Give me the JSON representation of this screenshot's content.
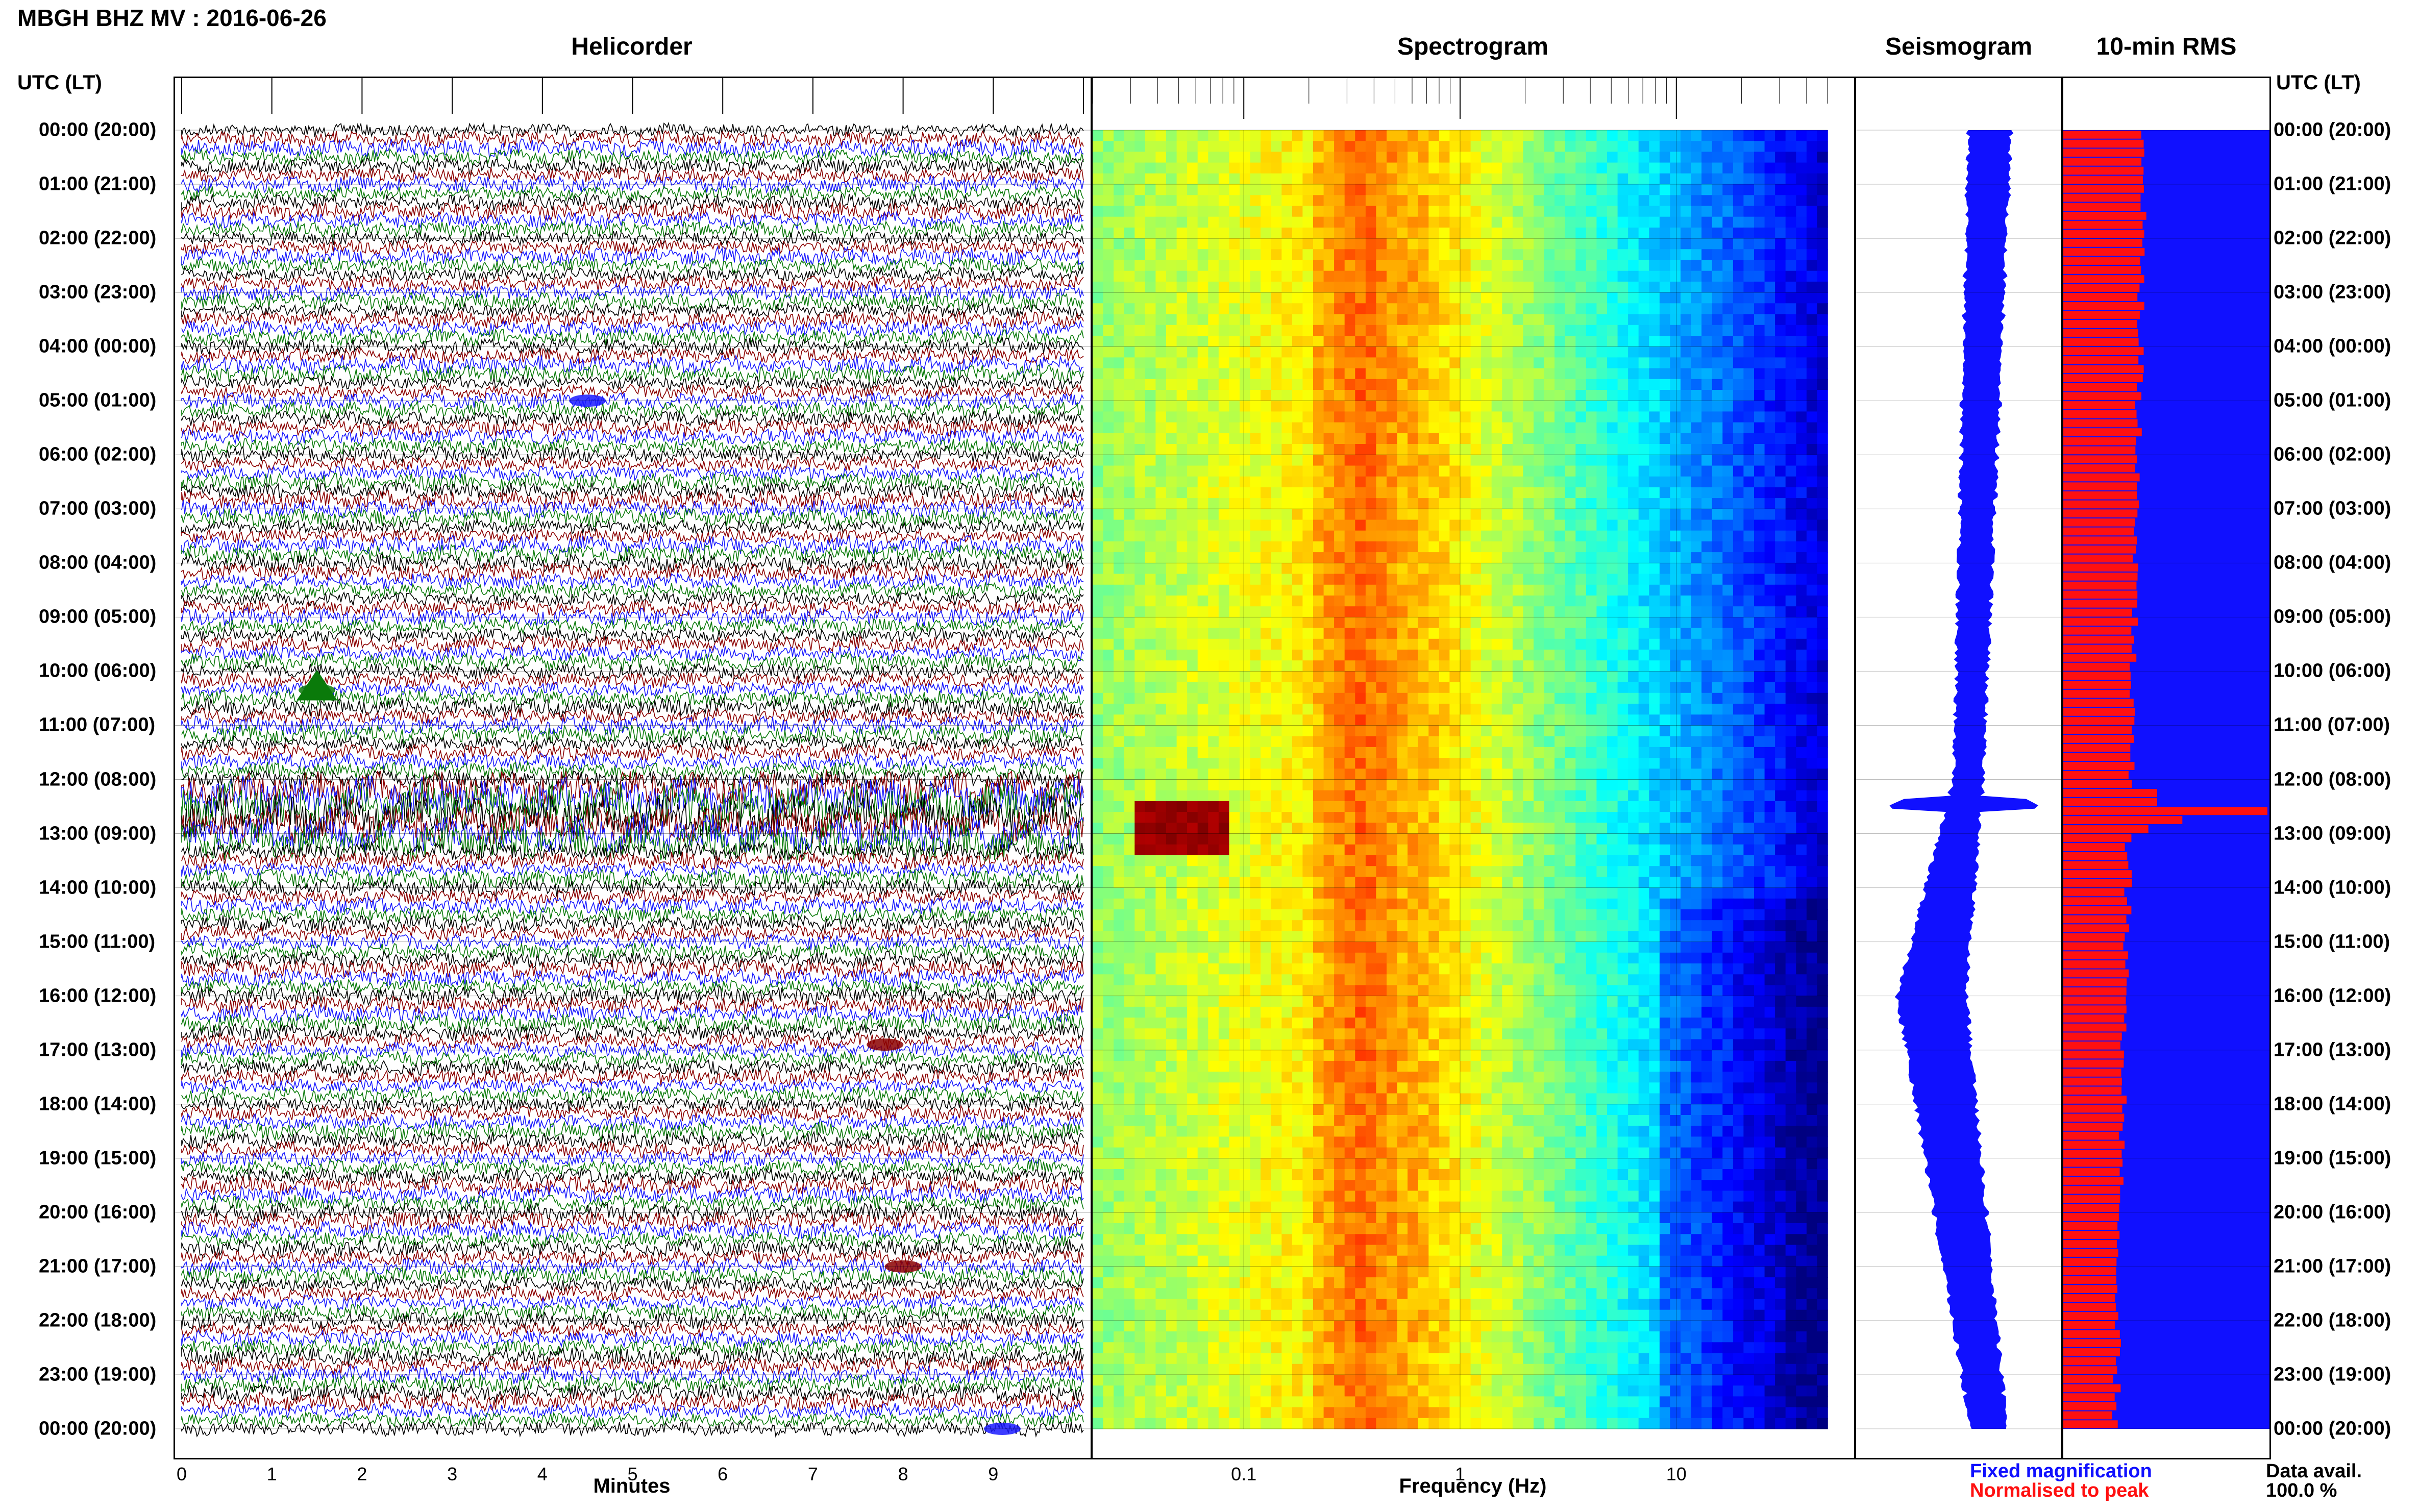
{
  "header": {
    "title": "MBGH BHZ MV : 2016-06-26",
    "utc_label_left": "UTC (LT)",
    "utc_label_right": "UTC (LT)"
  },
  "panels": {
    "helicorder": "Helicorder",
    "spectrogram": "Spectrogram",
    "seismogram": "Seismogram",
    "rms": "10-min RMS"
  },
  "time_labels": [
    "00:00 (20:00)",
    "01:00 (21:00)",
    "02:00 (22:00)",
    "03:00 (23:00)",
    "04:00 (00:00)",
    "05:00 (01:00)",
    "06:00 (02:00)",
    "07:00 (03:00)",
    "08:00 (04:00)",
    "09:00 (05:00)",
    "10:00 (06:00)",
    "11:00 (07:00)",
    "12:00 (08:00)",
    "13:00 (09:00)",
    "14:00 (10:00)",
    "15:00 (11:00)",
    "16:00 (12:00)",
    "17:00 (13:00)",
    "18:00 (14:00)",
    "19:00 (15:00)",
    "20:00 (16:00)",
    "21:00 (17:00)",
    "22:00 (18:00)",
    "23:00 (19:00)",
    "00:00 (20:00)"
  ],
  "axes": {
    "minutes_label": "Minutes",
    "minutes_ticks": [
      "0",
      "1",
      "2",
      "3",
      "4",
      "5",
      "6",
      "7",
      "8",
      "9"
    ],
    "frequency_label": "Frequency (Hz)",
    "frequency_ticks": [
      "0.1",
      "1",
      "10"
    ]
  },
  "legend": {
    "fixed": "Fixed magnification",
    "normalised": "Normalised to peak",
    "fixed_color": "#1010ff",
    "normalised_color": "#ff1010"
  },
  "data_availability": {
    "label": "Data avail.",
    "value": "100.0 %"
  },
  "colors": {
    "trace_cycle": [
      "#000000",
      "#8b0000",
      "#1a1aff",
      "#0a7a0a"
    ],
    "spectrogram_colormap": "jet",
    "seismogram": "#1010ff",
    "rms_fixed": "#1010ff",
    "rms_normalised": "#ff1010"
  },
  "chart_data": [
    {
      "type": "line",
      "name": "helicorder",
      "title": "Helicorder",
      "xlabel": "Minutes",
      "x_range": [
        0,
        10
      ],
      "rows_per_hour": 6,
      "hours": 24,
      "event_time_utc": "12:30",
      "notes": [
        "large regional event near 12:30 UTC",
        "small local events near 05:00, 10:20, 17:00, 21:00"
      ]
    },
    {
      "type": "heatmap",
      "name": "spectrogram",
      "title": "Spectrogram",
      "xlabel": "Frequency (Hz)",
      "x_scale": "log",
      "x_range": [
        0.02,
        50
      ],
      "dominant_band_hz": [
        0.2,
        0.5
      ],
      "event_band_hz": [
        0.03,
        0.08
      ],
      "event_time_utc": "12:30"
    },
    {
      "type": "line",
      "name": "seismogram",
      "title": "Seismogram",
      "note": "24-hour envelope, broadest near 12:30 UTC"
    },
    {
      "type": "bar",
      "name": "rms",
      "title": "10-min RMS",
      "series": [
        {
          "name": "Fixed magnification",
          "values": "background"
        },
        {
          "name": "Normalised to peak",
          "peak_time_utc": "12:30"
        }
      ]
    }
  ]
}
